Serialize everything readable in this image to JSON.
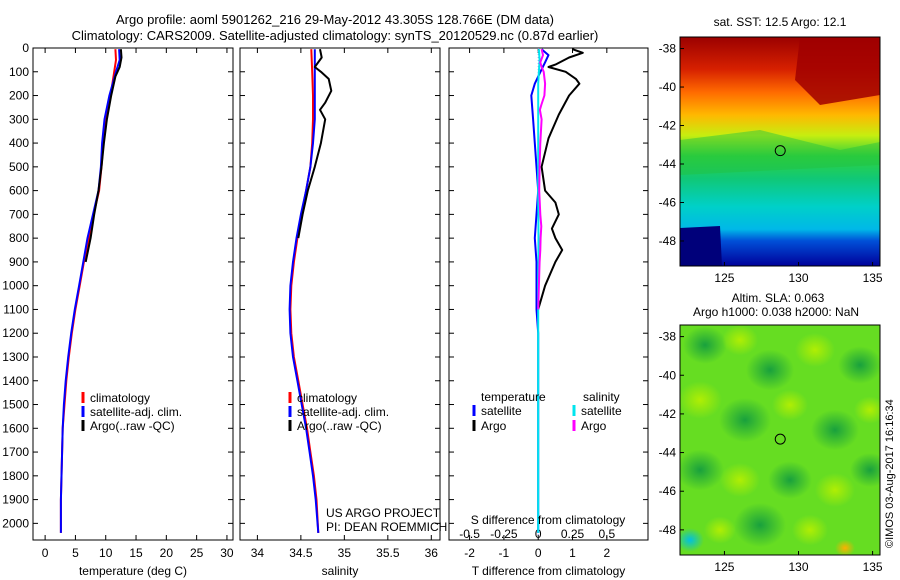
{
  "title": {
    "line1": "Argo profile: aoml 5901262_216 29-May-2012 43.305S 128.766E (DM data)",
    "line2": "Climatology: CARS2009. Satellite-adjusted climatology: synTS_20120529.nc (0.87d earlier)"
  },
  "colors": {
    "climatology": "#ff0000",
    "satellite": "#0000ff",
    "argo": "#000000",
    "sal_satellite": "#00e5ee",
    "sal_argo": "#ff00ff",
    "zero_line": "#9999ff"
  },
  "labels": {
    "project": "US ARGO PROJECT",
    "pi": "PI: DEAN ROEMMICH",
    "s_diff_label": "S difference from climatology",
    "watermark": "©IMOS 03-Aug-2017 16:16:34",
    "sst_title": "sat. SST: 12.5 Argo: 12.1",
    "sla_title1": "Altim. SLA: 0.063",
    "sla_title2": "Argo h1000: 0.038 h2000: NaN"
  },
  "chart_data": [
    {
      "type": "line",
      "xlabel": "temperature (deg C)",
      "ylabel": "",
      "xlim": [
        -2,
        31
      ],
      "ylim": [
        2070,
        0
      ],
      "xticks": [
        0,
        5,
        10,
        15,
        20,
        25,
        30
      ],
      "yticks": [
        0,
        100,
        200,
        300,
        400,
        500,
        600,
        700,
        800,
        900,
        1000,
        1100,
        1200,
        1300,
        1400,
        1500,
        1600,
        1700,
        1800,
        1900,
        2000
      ],
      "legend": [
        "climatology",
        "satellite-adj. clim.",
        "Argo(..raw -QC)"
      ],
      "series": [
        {
          "name": "climatology",
          "color": "#ff0000",
          "points": [
            [
              11.6,
              5
            ],
            [
              11.7,
              50
            ],
            [
              11.4,
              100
            ],
            [
              10.8,
              200
            ],
            [
              10.1,
              300
            ],
            [
              9.6,
              400
            ],
            [
              9.3,
              500
            ],
            [
              8.9,
              600
            ],
            [
              8.0,
              700
            ],
            [
              7.2,
              800
            ],
            [
              6.4,
              900
            ],
            [
              5.7,
              1000
            ],
            [
              5.0,
              1100
            ],
            [
              4.4,
              1200
            ],
            [
              3.9,
              1300
            ],
            [
              3.5,
              1400
            ],
            [
              3.2,
              1500
            ],
            [
              2.9,
              1600
            ],
            [
              2.8,
              1700
            ],
            [
              2.7,
              1800
            ],
            [
              2.6,
              1900
            ],
            [
              2.6,
              2040
            ]
          ]
        },
        {
          "name": "satellite-adj. clim.",
          "color": "#0000ff",
          "points": [
            [
              12.2,
              5
            ],
            [
              12.3,
              50
            ],
            [
              11.7,
              100
            ],
            [
              10.6,
              200
            ],
            [
              9.8,
              300
            ],
            [
              9.4,
              400
            ],
            [
              9.2,
              500
            ],
            [
              8.8,
              600
            ],
            [
              7.9,
              700
            ],
            [
              7.0,
              800
            ],
            [
              6.3,
              900
            ],
            [
              5.6,
              1000
            ],
            [
              4.9,
              1100
            ],
            [
              4.3,
              1200
            ],
            [
              3.8,
              1300
            ],
            [
              3.4,
              1400
            ],
            [
              3.1,
              1500
            ],
            [
              2.9,
              1600
            ],
            [
              2.8,
              1700
            ],
            [
              2.7,
              1800
            ],
            [
              2.6,
              1900
            ],
            [
              2.6,
              2040
            ]
          ]
        },
        {
          "name": "Argo(..raw -QC)",
          "color": "#000000",
          "points": [
            [
              12.5,
              5
            ],
            [
              12.6,
              40
            ],
            [
              12.3,
              80
            ],
            [
              11.6,
              120
            ],
            [
              10.9,
              200
            ],
            [
              10.2,
              300
            ],
            [
              9.7,
              400
            ],
            [
              9.3,
              500
            ],
            [
              8.8,
              600
            ],
            [
              8.1,
              700
            ],
            [
              7.5,
              800
            ],
            [
              6.7,
              900
            ]
          ]
        }
      ]
    },
    {
      "type": "line",
      "xlabel": "salinity",
      "ylabel": "",
      "xlim": [
        33.8,
        36.1
      ],
      "ylim": [
        2070,
        0
      ],
      "xticks": [
        34,
        34.5,
        35,
        35.5,
        36
      ],
      "legend": [
        "climatology",
        "satellite-adj. clim.",
        "Argo(..raw -QC)"
      ],
      "series": [
        {
          "name": "climatology",
          "color": "#ff0000",
          "points": [
            [
              34.62,
              5
            ],
            [
              34.63,
              100
            ],
            [
              34.64,
              200
            ],
            [
              34.64,
              300
            ],
            [
              34.63,
              400
            ],
            [
              34.61,
              500
            ],
            [
              34.56,
              600
            ],
            [
              34.51,
              700
            ],
            [
              34.46,
              800
            ],
            [
              34.42,
              900
            ],
            [
              34.39,
              1000
            ],
            [
              34.38,
              1100
            ],
            [
              34.39,
              1200
            ],
            [
              34.42,
              1300
            ],
            [
              34.47,
              1400
            ],
            [
              34.52,
              1500
            ],
            [
              34.57,
              1600
            ],
            [
              34.61,
              1700
            ],
            [
              34.65,
              1800
            ],
            [
              34.68,
              1900
            ],
            [
              34.7,
              2040
            ]
          ]
        },
        {
          "name": "satellite-adj. clim.",
          "color": "#0000ff",
          "points": [
            [
              34.66,
              5
            ],
            [
              34.66,
              100
            ],
            [
              34.66,
              200
            ],
            [
              34.66,
              300
            ],
            [
              34.64,
              400
            ],
            [
              34.61,
              500
            ],
            [
              34.56,
              600
            ],
            [
              34.5,
              700
            ],
            [
              34.45,
              800
            ],
            [
              34.41,
              900
            ],
            [
              34.38,
              1000
            ],
            [
              34.37,
              1100
            ],
            [
              34.38,
              1200
            ],
            [
              34.41,
              1300
            ],
            [
              34.46,
              1400
            ],
            [
              34.51,
              1500
            ],
            [
              34.56,
              1600
            ],
            [
              34.6,
              1700
            ],
            [
              34.64,
              1800
            ],
            [
              34.67,
              1900
            ],
            [
              34.7,
              2040
            ]
          ]
        },
        {
          "name": "Argo(..raw -QC)",
          "color": "#000000",
          "points": [
            [
              34.72,
              5
            ],
            [
              34.74,
              40
            ],
            [
              34.66,
              80
            ],
            [
              34.73,
              100
            ],
            [
              34.82,
              130
            ],
            [
              34.85,
              180
            ],
            [
              34.78,
              230
            ],
            [
              34.72,
              260
            ],
            [
              34.78,
              300
            ],
            [
              34.73,
              400
            ],
            [
              34.66,
              500
            ],
            [
              34.58,
              600
            ],
            [
              34.52,
              700
            ],
            [
              34.47,
              800
            ]
          ]
        }
      ]
    },
    {
      "type": "line",
      "xlabel": "T difference from climatology",
      "ylabel": "",
      "xlim": [
        -2.6,
        3.2
      ],
      "ylim": [
        2070,
        0
      ],
      "xticks": [
        -2,
        -1,
        0,
        1,
        2
      ],
      "top_xlabel": "S difference from climatology",
      "top_xticks": [
        -0.5,
        -0.25,
        0,
        0.25,
        0.5
      ],
      "legend_temperature": [
        "satellite",
        "Argo"
      ],
      "legend_salinity": [
        "satellite",
        "Argo"
      ],
      "legend_headers": [
        "temperature",
        "salinity"
      ],
      "series": [
        {
          "name": "temperature satellite",
          "color": "#0000ff",
          "points": [
            [
              0.1,
              5
            ],
            [
              0.3,
              30
            ],
            [
              0.2,
              60
            ],
            [
              0.1,
              90
            ],
            [
              0.0,
              120
            ],
            [
              -0.1,
              150
            ],
            [
              -0.2,
              200
            ],
            [
              -0.15,
              300
            ],
            [
              -0.1,
              400
            ],
            [
              -0.05,
              500
            ],
            [
              0.0,
              600
            ],
            [
              -0.05,
              700
            ],
            [
              -0.1,
              800
            ],
            [
              -0.05,
              900
            ],
            [
              -0.05,
              1000
            ],
            [
              -0.05,
              1100
            ],
            [
              0.0,
              1200
            ],
            [
              0.0,
              1400
            ],
            [
              0.0,
              1600
            ],
            [
              0.0,
              1800
            ],
            [
              0.0,
              2040
            ]
          ]
        },
        {
          "name": "temperature Argo",
          "color": "#000000",
          "points": [
            [
              1.0,
              5
            ],
            [
              1.3,
              20
            ],
            [
              0.9,
              40
            ],
            [
              0.5,
              70
            ],
            [
              0.3,
              80
            ],
            [
              0.8,
              100
            ],
            [
              1.1,
              130
            ],
            [
              1.2,
              150
            ],
            [
              0.9,
              200
            ],
            [
              0.6,
              280
            ],
            [
              0.3,
              380
            ],
            [
              0.1,
              500
            ],
            [
              0.2,
              600
            ],
            [
              0.5,
              650
            ],
            [
              0.6,
              700
            ],
            [
              0.4,
              760
            ],
            [
              0.5,
              800
            ],
            [
              0.7,
              850
            ],
            [
              0.5,
              900
            ],
            [
              0.2,
              1000
            ],
            [
              0.0,
              1100
            ]
          ]
        },
        {
          "name": "salinity satellite",
          "color": "#00e5ee",
          "points": [
            [
              0.02,
              5
            ],
            [
              0.04,
              50
            ],
            [
              0.02,
              100
            ],
            [
              0.0,
              150
            ],
            [
              0.0,
              200
            ],
            [
              0.0,
              400
            ],
            [
              0.0,
              600
            ],
            [
              0.01,
              800
            ],
            [
              0.0,
              1000
            ],
            [
              0.0,
              1200
            ],
            [
              0.0,
              1400
            ],
            [
              0.0,
              1600
            ],
            [
              0.0,
              1800
            ],
            [
              0.0,
              2040
            ]
          ]
        },
        {
          "name": "salinity Argo",
          "color": "#ff00ff",
          "points": [
            [
              0.1,
              5
            ],
            [
              0.14,
              30
            ],
            [
              0.06,
              60
            ],
            [
              0.1,
              80
            ],
            [
              0.16,
              100
            ],
            [
              0.2,
              150
            ],
            [
              0.18,
              200
            ],
            [
              0.09,
              240
            ],
            [
              0.05,
              260
            ],
            [
              0.1,
              300
            ],
            [
              0.06,
              400
            ],
            [
              0.04,
              500
            ],
            [
              0.03,
              600
            ],
            [
              0.06,
              700
            ],
            [
              0.09,
              750
            ],
            [
              0.07,
              800
            ],
            [
              0.06,
              850
            ],
            [
              0.04,
              900
            ],
            [
              0.02,
              1000
            ],
            [
              0.0,
              1100
            ]
          ]
        }
      ]
    },
    {
      "type": "heatmap",
      "title": "sat. SST: 12.5 Argo: 12.1",
      "xlim": [
        122,
        135.5
      ],
      "ylim": [
        -49.3,
        -37.4
      ],
      "xticks": [
        125,
        130,
        135
      ],
      "yticks": [
        -38,
        -40,
        -42,
        -44,
        -46,
        -48
      ],
      "marker": [
        128.766,
        -43.305
      ]
    },
    {
      "type": "heatmap",
      "title": "Altim. SLA: 0.063",
      "subtitle": "Argo h1000: 0.038 h2000: NaN",
      "xlim": [
        122,
        135.5
      ],
      "ylim": [
        -49.3,
        -37.4
      ],
      "xticks": [
        125,
        130,
        135
      ],
      "yticks": [
        -38,
        -40,
        -42,
        -44,
        -46,
        -48
      ],
      "marker": [
        128.766,
        -43.305
      ]
    }
  ]
}
